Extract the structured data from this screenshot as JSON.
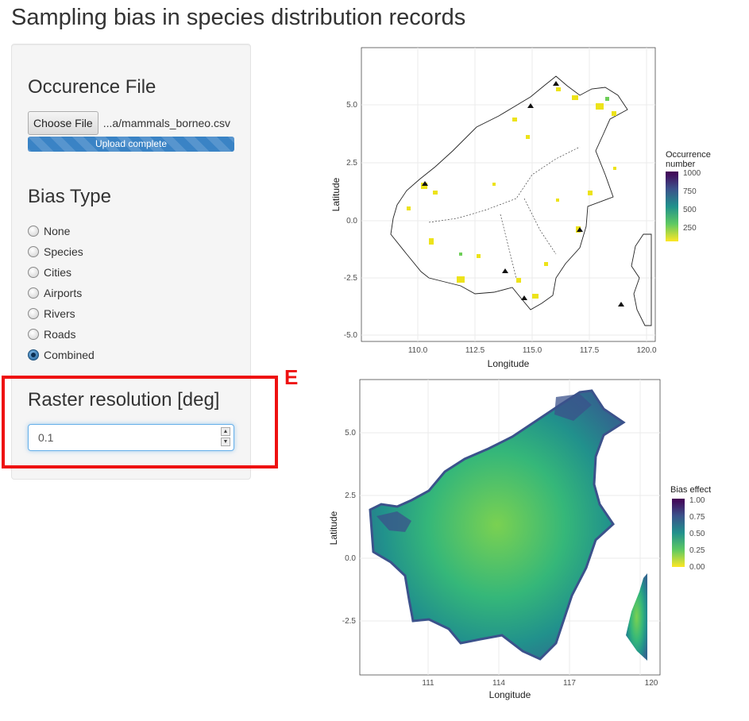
{
  "page": {
    "title": "Sampling bias in species distribution records"
  },
  "sidebar": {
    "occurrence": {
      "heading": "Occurence File",
      "button_label": "Choose File",
      "filename": "...a/mammals_borneo.csv",
      "progress_label": "Upload complete",
      "progress_value": 1.0
    },
    "bias": {
      "heading": "Bias Type",
      "options": [
        "None",
        "Species",
        "Cities",
        "Airports",
        "Rivers",
        "Roads",
        "Combined"
      ],
      "selected": "Combined"
    },
    "raster": {
      "heading": "Raster resolution [deg]",
      "value": "0.1"
    }
  },
  "annotation": {
    "label": "E",
    "color": "#ee1111"
  },
  "plot1": {
    "xlabel": "Longitude",
    "ylabel": "Latitude",
    "xticks": [
      "110.0",
      "112.5",
      "115.0",
      "117.5",
      "120.0"
    ],
    "yticks": [
      "5.0",
      "2.5",
      "0.0",
      "-2.5",
      "-5.0"
    ],
    "legend_title": [
      "Occurrence",
      "number"
    ],
    "legend_ticks": [
      "1000",
      "750",
      "500",
      "250"
    ]
  },
  "plot2": {
    "xlabel": "Longitude",
    "ylabel": "Latitude",
    "xticks": [
      "111",
      "114",
      "117",
      "120"
    ],
    "yticks": [
      "5.0",
      "2.5",
      "0.0",
      "-2.5"
    ],
    "legend_title": "Bias effect",
    "legend_ticks": [
      "1.00",
      "0.75",
      "0.50",
      "0.25",
      "0.00"
    ]
  },
  "colors": {
    "progress": "#3a83c5",
    "viridis_low": "#440154",
    "viridis_mid": "#21918c",
    "viridis_high": "#fde725",
    "accent": "#ee1111"
  }
}
